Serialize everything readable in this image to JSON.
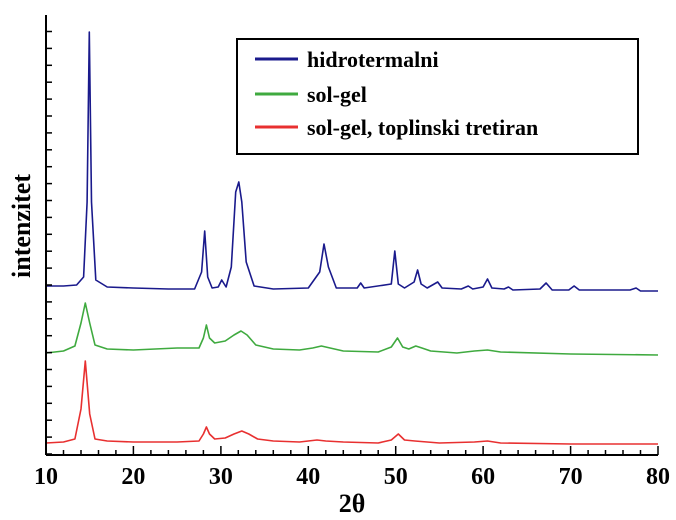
{
  "chart_data": {
    "type": "line",
    "xlabel": "2θ",
    "ylabel": "intenzitet",
    "xlim": [
      10,
      80
    ],
    "x_ticks": [
      "10",
      "20",
      "30",
      "40",
      "50",
      "60",
      "70",
      "80"
    ],
    "y_tick_labels": "none",
    "legend_position": "top-right",
    "series": [
      {
        "name": "hidrotermalni",
        "color": "#1a1a8c",
        "offset_level": "top",
        "points": [
          [
            10,
            0.06
          ],
          [
            12,
            0.06
          ],
          [
            13.5,
            0.07
          ],
          [
            14.3,
            0.15
          ],
          [
            14.7,
            0.9
          ],
          [
            14.95,
            2.6
          ],
          [
            15.2,
            0.9
          ],
          [
            15.7,
            0.12
          ],
          [
            17,
            0.05
          ],
          [
            20,
            0.04
          ],
          [
            24,
            0.03
          ],
          [
            27,
            0.03
          ],
          [
            27.8,
            0.2
          ],
          [
            28.15,
            0.61
          ],
          [
            28.5,
            0.15
          ],
          [
            29,
            0.04
          ],
          [
            29.7,
            0.05
          ],
          [
            30.1,
            0.12
          ],
          [
            30.6,
            0.05
          ],
          [
            31.2,
            0.25
          ],
          [
            31.7,
            1.0
          ],
          [
            32.05,
            1.1
          ],
          [
            32.4,
            0.9
          ],
          [
            32.9,
            0.3
          ],
          [
            33.8,
            0.06
          ],
          [
            36,
            0.03
          ],
          [
            40,
            0.04
          ],
          [
            41.3,
            0.2
          ],
          [
            41.8,
            0.48
          ],
          [
            42.3,
            0.25
          ],
          [
            43.2,
            0.04
          ],
          [
            45.6,
            0.04
          ],
          [
            46,
            0.09
          ],
          [
            46.4,
            0.04
          ],
          [
            49.5,
            0.08
          ],
          [
            49.9,
            0.41
          ],
          [
            50.3,
            0.08
          ],
          [
            51,
            0.04
          ],
          [
            52.1,
            0.1
          ],
          [
            52.5,
            0.22
          ],
          [
            52.9,
            0.08
          ],
          [
            53.6,
            0.04
          ],
          [
            54.8,
            0.1
          ],
          [
            55.3,
            0.04
          ],
          [
            57.5,
            0.03
          ],
          [
            58.3,
            0.06
          ],
          [
            58.8,
            0.03
          ],
          [
            60,
            0.05
          ],
          [
            60.5,
            0.13
          ],
          [
            61,
            0.04
          ],
          [
            62.4,
            0.03
          ],
          [
            62.9,
            0.05
          ],
          [
            63.4,
            0.02
          ],
          [
            66.5,
            0.03
          ],
          [
            67.2,
            0.09
          ],
          [
            67.9,
            0.02
          ],
          [
            69.8,
            0.02
          ],
          [
            70.4,
            0.06
          ],
          [
            71,
            0.02
          ],
          [
            76.8,
            0.02
          ],
          [
            77.5,
            0.04
          ],
          [
            78,
            0.01
          ],
          [
            80,
            0.01
          ]
        ]
      },
      {
        "name": "sol-gel",
        "color": "#3faa3f",
        "offset_level": "middle",
        "points": [
          [
            10,
            0.0
          ],
          [
            12,
            0.02
          ],
          [
            13.3,
            0.07
          ],
          [
            14,
            0.3
          ],
          [
            14.5,
            0.5
          ],
          [
            15,
            0.3
          ],
          [
            15.6,
            0.08
          ],
          [
            17,
            0.04
          ],
          [
            20,
            0.03
          ],
          [
            25,
            0.05
          ],
          [
            27.5,
            0.05
          ],
          [
            28,
            0.15
          ],
          [
            28.35,
            0.28
          ],
          [
            28.7,
            0.15
          ],
          [
            29.3,
            0.1
          ],
          [
            30.5,
            0.12
          ],
          [
            31.5,
            0.18
          ],
          [
            32.3,
            0.22
          ],
          [
            33,
            0.18
          ],
          [
            34,
            0.08
          ],
          [
            36,
            0.04
          ],
          [
            39,
            0.03
          ],
          [
            40.5,
            0.05
          ],
          [
            41.5,
            0.07
          ],
          [
            42.5,
            0.05
          ],
          [
            44,
            0.02
          ],
          [
            48,
            0.01
          ],
          [
            49.5,
            0.06
          ],
          [
            50.2,
            0.15
          ],
          [
            50.8,
            0.06
          ],
          [
            51.5,
            0.04
          ],
          [
            52.3,
            0.07
          ],
          [
            53,
            0.05
          ],
          [
            54,
            0.02
          ],
          [
            57,
            0.0
          ],
          [
            59,
            0.02
          ],
          [
            60.5,
            0.03
          ],
          [
            62,
            0.01
          ],
          [
            70,
            -0.01
          ],
          [
            80,
            -0.02
          ]
        ]
      },
      {
        "name": "sol-gel, toplinski tretiran",
        "color": "#e83030",
        "offset_level": "bottom",
        "points": [
          [
            10,
            0.01
          ],
          [
            12,
            0.02
          ],
          [
            13.3,
            0.05
          ],
          [
            14,
            0.35
          ],
          [
            14.5,
            0.83
          ],
          [
            15,
            0.3
          ],
          [
            15.6,
            0.05
          ],
          [
            17,
            0.03
          ],
          [
            20,
            0.02
          ],
          [
            25,
            0.02
          ],
          [
            27.5,
            0.03
          ],
          [
            28,
            0.1
          ],
          [
            28.35,
            0.17
          ],
          [
            28.7,
            0.1
          ],
          [
            29.3,
            0.05
          ],
          [
            30.5,
            0.06
          ],
          [
            31.5,
            0.1
          ],
          [
            32.4,
            0.13
          ],
          [
            33.2,
            0.1
          ],
          [
            34.2,
            0.05
          ],
          [
            36,
            0.03
          ],
          [
            39,
            0.02
          ],
          [
            41,
            0.04
          ],
          [
            42,
            0.03
          ],
          [
            44,
            0.02
          ],
          [
            48,
            0.01
          ],
          [
            49.5,
            0.04
          ],
          [
            50.3,
            0.1
          ],
          [
            51,
            0.04
          ],
          [
            52.2,
            0.03
          ],
          [
            55,
            0.01
          ],
          [
            59,
            0.02
          ],
          [
            60.5,
            0.03
          ],
          [
            62,
            0.01
          ],
          [
            70,
            0.0
          ],
          [
            80,
            0.0
          ]
        ]
      }
    ]
  }
}
